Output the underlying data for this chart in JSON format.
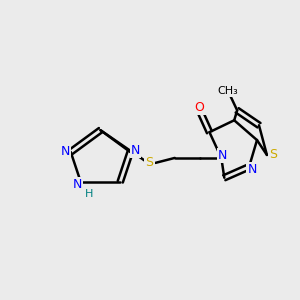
{
  "bg_color": "#ebebeb",
  "bond_color": "#000000",
  "bond_width": 1.8,
  "atom_colors": {
    "N": "#0000ff",
    "S": "#ccaa00",
    "S_thio": "#ccaa00",
    "O": "#ff0000",
    "H": "#008080",
    "C": "#000000"
  },
  "font_size": 9,
  "title": ""
}
